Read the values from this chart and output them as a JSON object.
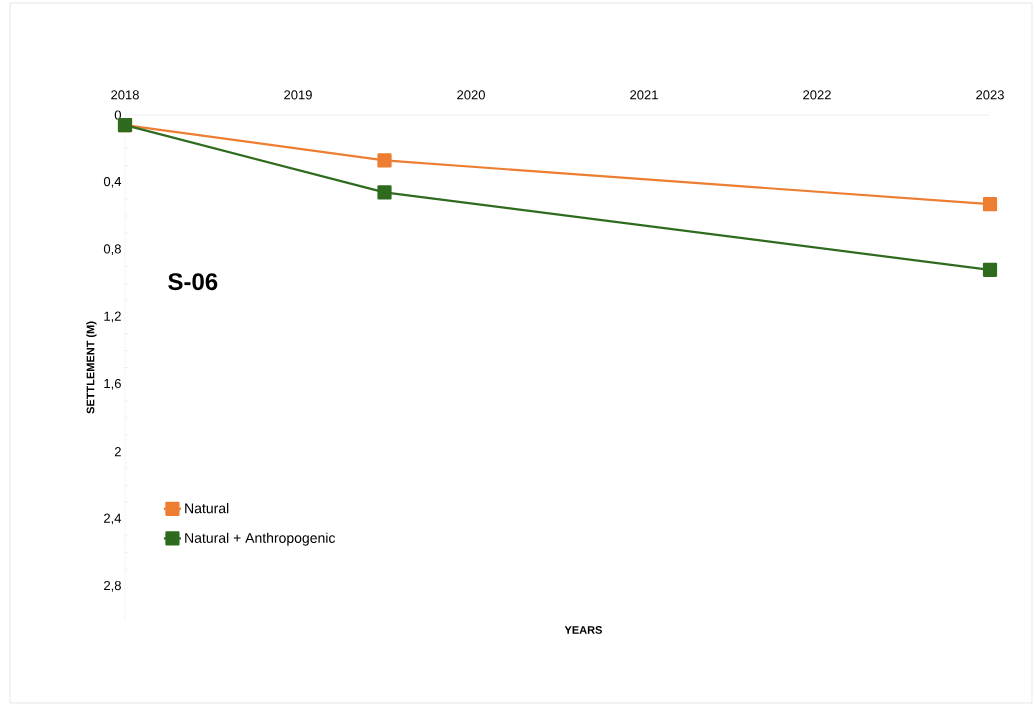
{
  "chart_data": {
    "type": "line",
    "x": [
      2018,
      2019.5,
      2023
    ],
    "series": [
      {
        "name": "Natural",
        "color": "#ed7d31",
        "values": [
          0.06,
          0.27,
          0.53
        ]
      },
      {
        "name": "Natural + Anthropogenic",
        "color": "#2e6b1e",
        "values": [
          0.06,
          0.46,
          0.92
        ]
      }
    ],
    "xlabel": "YEARS",
    "ylabel": "SETTLEMENT (M)",
    "xlim": [
      2018,
      2023
    ],
    "xticks": [
      2018,
      2019,
      2020,
      2021,
      2022,
      2023
    ],
    "ylim": [
      3,
      0
    ],
    "yticks": [
      0,
      {
        "value": 0.4,
        "label": "0,4"
      },
      {
        "value": 0.8,
        "label": "0,8"
      },
      {
        "value": 1.2,
        "label": "1,2"
      },
      {
        "value": 1.6,
        "label": "1,6"
      },
      2,
      {
        "value": 2.4,
        "label": "2,4"
      },
      {
        "value": 2.8,
        "label": "2,8"
      }
    ],
    "annotations": [
      "S-06"
    ],
    "legend": "bottom left",
    "marker": "square",
    "line_style": "solid",
    "grid": false
  }
}
